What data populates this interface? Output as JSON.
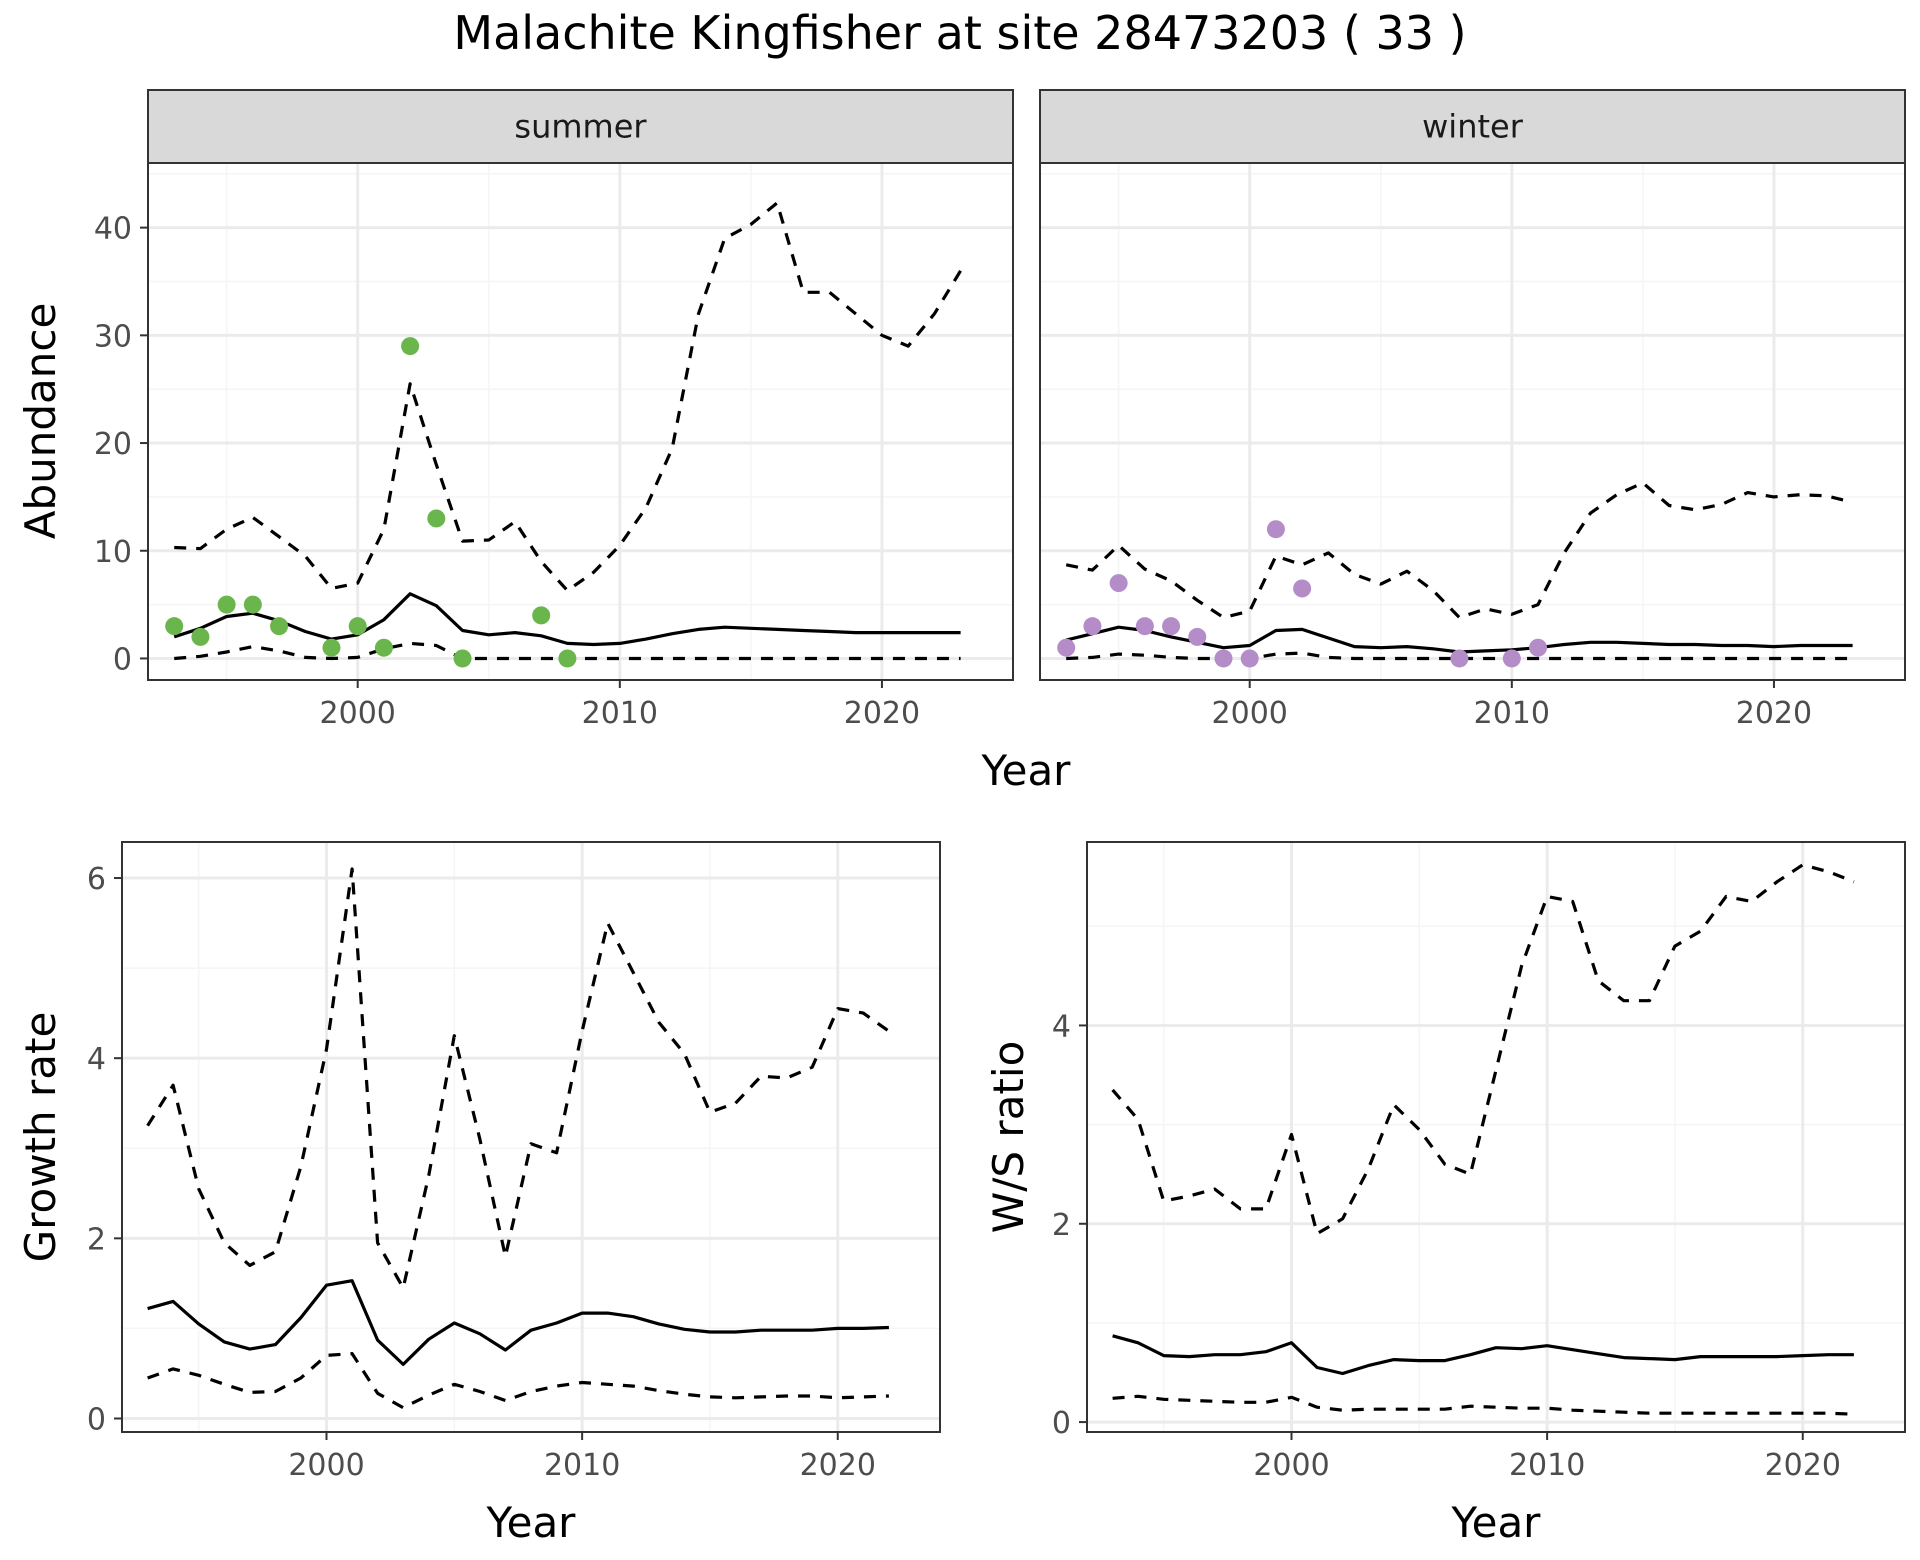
{
  "title": "Malachite Kingfisher at site 28473203 ( 33 )",
  "colors": {
    "summer_points": "#6ab64c",
    "winter_points": "#b48cc8",
    "lines": "#000000",
    "grid_major": "#ebebeb",
    "grid_minor": "#f5f5f5",
    "strip_bg": "#d9d9d9"
  },
  "chart_data": [
    {
      "type": "line",
      "panel": "summer",
      "xlabel": "Year",
      "ylabel": "Abundance",
      "xlim": [
        1992,
        2025
      ],
      "ylim": [
        -2,
        46
      ],
      "xticks": [
        2000,
        2010,
        2020
      ],
      "yticks": [
        0,
        10,
        20,
        30,
        40
      ],
      "years": [
        1993,
        1994,
        1995,
        1996,
        1997,
        1998,
        1999,
        2000,
        2001,
        2002,
        2003,
        2004,
        2005,
        2006,
        2007,
        2008,
        2009,
        2010,
        2011,
        2012,
        2013,
        2014,
        2015,
        2016,
        2017,
        2018,
        2019,
        2020,
        2021,
        2022,
        2023
      ],
      "lines": [
        {
          "style": "solid",
          "values": [
            2.0,
            2.8,
            3.9,
            4.2,
            3.5,
            2.5,
            1.8,
            2.2,
            3.6,
            6.0,
            4.9,
            2.6,
            2.2,
            2.4,
            2.1,
            1.4,
            1.3,
            1.4,
            1.8,
            2.3,
            2.7,
            2.9,
            2.8,
            2.7,
            2.6,
            2.5,
            2.4,
            2.4,
            2.4,
            2.4,
            2.4
          ]
        },
        {
          "style": "dashed",
          "values": [
            10.3,
            10.2,
            12.0,
            13.1,
            11.3,
            9.5,
            6.5,
            7.0,
            12.0,
            25.5,
            18.0,
            10.9,
            11.0,
            12.7,
            9.0,
            6.3,
            8.0,
            10.5,
            14.0,
            19.5,
            32.0,
            39.0,
            40.3,
            42.3,
            34.0,
            34.0,
            32.0,
            30.0,
            29.0,
            32.0,
            36.0
          ]
        },
        {
          "style": "dashed",
          "values": [
            0.0,
            0.2,
            0.6,
            1.1,
            0.7,
            0.1,
            0.0,
            0.1,
            0.9,
            1.4,
            1.2,
            0.0,
            0.0,
            0.0,
            0.0,
            0.0,
            0.0,
            0.0,
            0.0,
            0.0,
            0.0,
            0.0,
            0.0,
            0.0,
            0.0,
            0.0,
            0.0,
            0.0,
            0.0,
            0.0,
            0.0
          ]
        }
      ],
      "points": {
        "x": [
          1993,
          1994,
          1995,
          1996,
          1997,
          1999,
          2000,
          2001,
          2002,
          2003,
          2004,
          2007,
          2008
        ],
        "y": [
          3,
          2,
          5,
          5,
          3,
          1,
          3,
          1,
          29,
          13,
          0,
          4,
          0
        ]
      }
    },
    {
      "type": "line",
      "panel": "winter",
      "xlabel": "Year",
      "ylabel": "Abundance",
      "xlim": [
        1992,
        2025
      ],
      "ylim": [
        -2,
        46
      ],
      "xticks": [
        2000,
        2010,
        2020
      ],
      "yticks": [
        0,
        10,
        20,
        30,
        40
      ],
      "years": [
        1993,
        1994,
        1995,
        1996,
        1997,
        1998,
        1999,
        2000,
        2001,
        2002,
        2003,
        2004,
        2005,
        2006,
        2007,
        2008,
        2009,
        2010,
        2011,
        2012,
        2013,
        2014,
        2015,
        2016,
        2017,
        2018,
        2019,
        2020,
        2021,
        2022,
        2023
      ],
      "lines": [
        {
          "style": "solid",
          "values": [
            1.7,
            2.3,
            2.9,
            2.6,
            2.0,
            1.5,
            1.0,
            1.2,
            2.6,
            2.7,
            1.9,
            1.1,
            1.0,
            1.1,
            0.9,
            0.6,
            0.7,
            0.8,
            1.0,
            1.3,
            1.5,
            1.5,
            1.4,
            1.3,
            1.3,
            1.2,
            1.2,
            1.1,
            1.2,
            1.2,
            1.2
          ]
        },
        {
          "style": "dashed",
          "values": [
            8.7,
            8.2,
            10.5,
            8.3,
            7.2,
            5.4,
            3.8,
            4.4,
            9.5,
            8.7,
            9.8,
            7.8,
            6.9,
            8.1,
            6.3,
            3.8,
            4.6,
            4.1,
            5.0,
            9.8,
            13.5,
            15.2,
            16.3,
            14.2,
            13.8,
            14.3,
            15.4,
            15.0,
            15.2,
            15.1,
            14.5
          ]
        },
        {
          "style": "dashed",
          "values": [
            0.0,
            0.1,
            0.4,
            0.3,
            0.1,
            0.0,
            0.0,
            0.0,
            0.4,
            0.5,
            0.1,
            0.0,
            0.0,
            0.0,
            0.0,
            0.0,
            0.0,
            0.0,
            0.0,
            0.0,
            0.0,
            0.0,
            0.0,
            0.0,
            0.0,
            0.0,
            0.0,
            0.0,
            0.0,
            0.0,
            0.0
          ]
        }
      ],
      "points": {
        "x": [
          1993,
          1994,
          1995,
          1996,
          1997,
          1998,
          1999,
          2000,
          2001,
          2002,
          2008,
          2010,
          2011
        ],
        "y": [
          1,
          3,
          7,
          3,
          3,
          2,
          0,
          0,
          12,
          6.5,
          0,
          0,
          1
        ]
      }
    },
    {
      "type": "line",
      "xlabel": "Year",
      "ylabel": "Growth rate",
      "xlim": [
        1992,
        2024
      ],
      "ylim": [
        -0.15,
        6.4
      ],
      "xticks": [
        2000,
        2010,
        2020
      ],
      "yticks": [
        0,
        2,
        4,
        6
      ],
      "years": [
        1993,
        1994,
        1995,
        1996,
        1997,
        1998,
        1999,
        2000,
        2001,
        2002,
        2003,
        2004,
        2005,
        2006,
        2007,
        2008,
        2009,
        2010,
        2011,
        2012,
        2013,
        2014,
        2015,
        2016,
        2017,
        2018,
        2019,
        2020,
        2021,
        2022
      ],
      "lines": [
        {
          "style": "solid",
          "values": [
            1.22,
            1.3,
            1.05,
            0.85,
            0.77,
            0.82,
            1.12,
            1.48,
            1.53,
            0.87,
            0.6,
            0.88,
            1.06,
            0.94,
            0.76,
            0.98,
            1.06,
            1.17,
            1.17,
            1.13,
            1.05,
            0.99,
            0.96,
            0.96,
            0.98,
            0.98,
            0.98,
            1.0,
            1.0,
            1.01
          ]
        },
        {
          "style": "dashed",
          "values": [
            3.25,
            3.7,
            2.55,
            1.95,
            1.7,
            1.85,
            2.8,
            4.1,
            6.1,
            1.95,
            1.45,
            2.7,
            4.25,
            3.1,
            1.8,
            3.05,
            2.95,
            4.3,
            5.5,
            4.95,
            4.4,
            4.05,
            3.4,
            3.5,
            3.8,
            3.78,
            3.9,
            4.55,
            4.5,
            4.3
          ]
        },
        {
          "style": "dashed",
          "values": [
            0.45,
            0.55,
            0.48,
            0.38,
            0.29,
            0.3,
            0.45,
            0.7,
            0.72,
            0.28,
            0.12,
            0.26,
            0.38,
            0.3,
            0.2,
            0.3,
            0.36,
            0.4,
            0.38,
            0.36,
            0.31,
            0.27,
            0.24,
            0.23,
            0.24,
            0.25,
            0.25,
            0.23,
            0.24,
            0.25
          ]
        }
      ]
    },
    {
      "type": "line",
      "xlabel": "Year",
      "ylabel": "W/S ratio",
      "xlim": [
        1992,
        2024
      ],
      "ylim": [
        -0.1,
        5.85
      ],
      "xticks": [
        2000,
        2010,
        2020
      ],
      "yticks": [
        0,
        2,
        4
      ],
      "years": [
        1993,
        1994,
        1995,
        1996,
        1997,
        1998,
        1999,
        2000,
        2001,
        2002,
        2003,
        2004,
        2005,
        2006,
        2007,
        2008,
        2009,
        2010,
        2011,
        2012,
        2013,
        2014,
        2015,
        2016,
        2017,
        2018,
        2019,
        2020,
        2021,
        2022
      ],
      "lines": [
        {
          "style": "solid",
          "values": [
            0.87,
            0.8,
            0.67,
            0.66,
            0.68,
            0.68,
            0.71,
            0.8,
            0.55,
            0.49,
            0.57,
            0.63,
            0.62,
            0.62,
            0.68,
            0.75,
            0.74,
            0.77,
            0.73,
            0.69,
            0.65,
            0.64,
            0.63,
            0.66,
            0.66,
            0.66,
            0.66,
            0.67,
            0.68,
            0.68
          ]
        },
        {
          "style": "dashed",
          "values": [
            3.35,
            3.05,
            2.23,
            2.28,
            2.35,
            2.15,
            2.15,
            2.9,
            1.9,
            2.05,
            2.55,
            3.2,
            2.95,
            2.6,
            2.5,
            3.55,
            4.6,
            5.3,
            5.25,
            4.45,
            4.25,
            4.25,
            4.8,
            4.95,
            5.3,
            5.25,
            5.45,
            5.62,
            5.55,
            5.45
          ]
        },
        {
          "style": "dashed",
          "values": [
            0.24,
            0.26,
            0.23,
            0.22,
            0.21,
            0.2,
            0.2,
            0.25,
            0.15,
            0.12,
            0.13,
            0.13,
            0.13,
            0.13,
            0.16,
            0.15,
            0.14,
            0.14,
            0.12,
            0.11,
            0.1,
            0.09,
            0.09,
            0.09,
            0.09,
            0.09,
            0.09,
            0.09,
            0.09,
            0.08
          ]
        }
      ]
    }
  ],
  "strips": {
    "summer": "summer",
    "winter": "winter"
  },
  "labels": {
    "year": "Year",
    "abundance": "Abundance",
    "growth": "Growth rate",
    "ratio": "W/S ratio"
  }
}
